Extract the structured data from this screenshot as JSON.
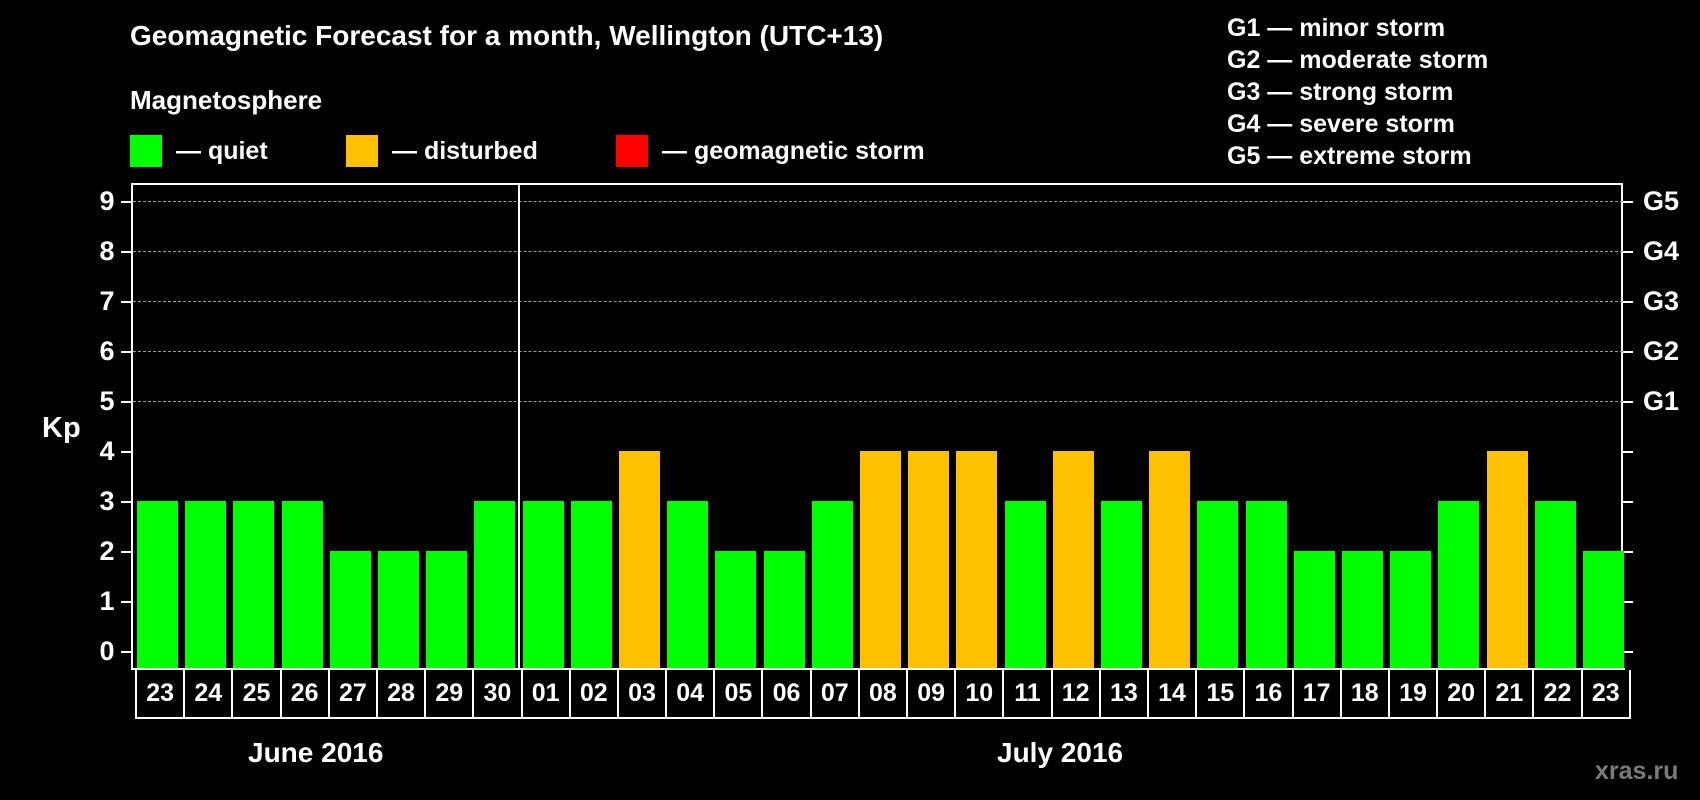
{
  "header": {
    "title": "Geomagnetic Forecast for a month, Wellington (UTC+13)",
    "magnetosphere_label": "Magnetosphere",
    "legend": [
      {
        "label": "— quiet",
        "color": "#00ff00"
      },
      {
        "label": "— disturbed",
        "color": "#ffc000"
      },
      {
        "label": "— geomagnetic storm",
        "color": "#ff0000"
      }
    ],
    "g_scale": [
      "G1 — minor storm",
      "G2 — moderate storm",
      "G3 — strong storm",
      "G4 — severe storm",
      "G5 — extreme storm"
    ]
  },
  "axes": {
    "ylabel": "Kp",
    "yticks": [
      "0",
      "1",
      "2",
      "3",
      "4",
      "5",
      "6",
      "7",
      "8",
      "9"
    ],
    "right_labels": [
      {
        "kp": 5,
        "label": "G1"
      },
      {
        "kp": 6,
        "label": "G2"
      },
      {
        "kp": 7,
        "label": "G3"
      },
      {
        "kp": 8,
        "label": "G4"
      },
      {
        "kp": 9,
        "label": "G5"
      }
    ],
    "months": [
      {
        "label": "June 2016"
      },
      {
        "label": "July 2016"
      }
    ]
  },
  "watermark": "xras.ru",
  "chart_data": {
    "type": "bar",
    "title": "Geomagnetic Forecast for a month, Wellington (UTC+13)",
    "xlabel": "",
    "ylabel": "Kp",
    "ylim": [
      0,
      9
    ],
    "grid": "horizontal dashed at Kp 5-9",
    "categories": [
      "23",
      "24",
      "25",
      "26",
      "27",
      "28",
      "29",
      "30",
      "01",
      "02",
      "03",
      "04",
      "05",
      "06",
      "07",
      "08",
      "09",
      "10",
      "11",
      "12",
      "13",
      "14",
      "15",
      "16",
      "17",
      "18",
      "19",
      "20",
      "21",
      "22",
      "23"
    ],
    "category_months": [
      "June 2016",
      "June 2016",
      "June 2016",
      "June 2016",
      "June 2016",
      "June 2016",
      "June 2016",
      "June 2016",
      "July 2016",
      "July 2016",
      "July 2016",
      "July 2016",
      "July 2016",
      "July 2016",
      "July 2016",
      "July 2016",
      "July 2016",
      "July 2016",
      "July 2016",
      "July 2016",
      "July 2016",
      "July 2016",
      "July 2016",
      "July 2016",
      "July 2016",
      "July 2016",
      "July 2016",
      "July 2016",
      "July 2016",
      "July 2016",
      "July 2016"
    ],
    "values": [
      3,
      3,
      3,
      3,
      2,
      2,
      2,
      3,
      3,
      3,
      4,
      3,
      2,
      2,
      3,
      4,
      4,
      4,
      3,
      4,
      3,
      4,
      3,
      3,
      2,
      2,
      2,
      3,
      4,
      3,
      2
    ],
    "status": [
      "quiet",
      "quiet",
      "quiet",
      "quiet",
      "quiet",
      "quiet",
      "quiet",
      "quiet",
      "quiet",
      "quiet",
      "disturbed",
      "quiet",
      "quiet",
      "quiet",
      "quiet",
      "disturbed",
      "disturbed",
      "disturbed",
      "quiet",
      "disturbed",
      "quiet",
      "disturbed",
      "quiet",
      "quiet",
      "quiet",
      "quiet",
      "quiet",
      "quiet",
      "disturbed",
      "quiet",
      "quiet"
    ],
    "status_colors": {
      "quiet": "#00ff00",
      "disturbed": "#ffc000",
      "storm": "#ff0000"
    },
    "secondary_axis": {
      "5": "G1",
      "6": "G2",
      "7": "G3",
      "8": "G4",
      "9": "G5"
    },
    "legend": [
      "quiet",
      "disturbed",
      "geomagnetic storm"
    ]
  }
}
